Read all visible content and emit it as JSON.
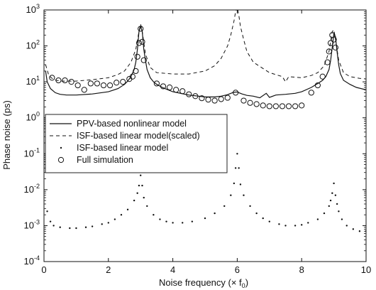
{
  "chart_data": {
    "type": "line",
    "xlabel": "Noise frequency (× f",
    "xlabel_subscript": "0",
    "xlabel_suffix": ")",
    "ylabel": "Phase noise (ps)",
    "xlim": [
      0,
      10
    ],
    "ylim": [
      0.0001,
      1000
    ],
    "yscale": "log",
    "x_ticks": [
      0,
      2,
      4,
      6,
      8,
      10
    ],
    "y_tick_exponents": [
      -4,
      -3,
      -2,
      -1,
      0,
      1,
      2,
      3
    ],
    "y_tick_base": "10",
    "grid": false,
    "legend_position": "middle-left",
    "series": [
      {
        "name": "PPV-based nonlinear model",
        "style": "solid",
        "x": [
          0.05,
          0.1,
          0.2,
          0.35,
          0.5,
          0.7,
          1.0,
          1.5,
          2.0,
          2.3,
          2.5,
          2.6,
          2.7,
          2.8,
          2.85,
          2.9,
          2.95,
          3.0,
          3.05,
          3.1,
          3.15,
          3.2,
          3.3,
          3.4,
          3.5,
          3.7,
          4.0,
          4.5,
          5.0,
          5.3,
          5.5,
          5.7,
          5.85,
          5.95,
          6.0,
          6.05,
          6.15,
          6.3,
          6.5,
          6.7,
          6.9,
          7.0,
          7.2,
          7.5,
          7.8,
          8.0,
          8.3,
          8.5,
          8.65,
          8.75,
          8.85,
          8.9,
          8.95,
          9.0,
          9.05,
          9.1,
          9.15,
          9.2,
          9.3,
          9.5,
          9.7,
          10.0
        ],
        "y": [
          20,
          10,
          6.5,
          5,
          4.5,
          4.3,
          4.3,
          4.6,
          5.3,
          6.5,
          8.5,
          10.5,
          14,
          22,
          35,
          80,
          250,
          350,
          250,
          80,
          40,
          22,
          13,
          10,
          8.5,
          6.8,
          5.3,
          4.3,
          3.8,
          3.8,
          4.0,
          4.4,
          5.0,
          5.2,
          5.2,
          5.0,
          4.6,
          4.2,
          4.0,
          3.6,
          4.8,
          3.7,
          4.3,
          4.5,
          4.8,
          5.3,
          7.0,
          9.0,
          11,
          14,
          22,
          40,
          90,
          220,
          180,
          70,
          30,
          17,
          11,
          8.5,
          7,
          6
        ]
      },
      {
        "name": "ISF-based linear model(scaled)",
        "style": "dashed",
        "x": [
          0.05,
          0.15,
          0.3,
          0.5,
          1.0,
          1.5,
          2.0,
          2.3,
          2.5,
          2.7,
          2.85,
          2.95,
          3.0,
          3.05,
          3.15,
          3.3,
          3.5,
          4.0,
          4.5,
          5.0,
          5.3,
          5.5,
          5.7,
          5.8,
          5.9,
          5.95,
          6.0,
          6.05,
          6.1,
          6.2,
          6.3,
          6.5,
          7.0,
          7.4,
          7.5,
          7.6,
          8.0,
          8.3,
          8.5,
          8.7,
          8.85,
          8.95,
          9.0,
          9.05,
          9.15,
          9.3,
          9.5,
          9.8,
          10.0
        ],
        "y": [
          30,
          15,
          11.5,
          10.5,
          10.5,
          11.5,
          13,
          16,
          20,
          35,
          80,
          250,
          400,
          250,
          60,
          25,
          18,
          16.5,
          16.5,
          20,
          28,
          45,
          100,
          200,
          500,
          900,
          1200,
          700,
          350,
          150,
          70,
          35,
          18,
          14,
          10,
          14,
          13,
          15,
          18,
          28,
          70,
          250,
          280,
          150,
          40,
          18,
          14,
          12.5,
          12
        ]
      },
      {
        "name": "ISF-based linear model",
        "style": "dotted",
        "x": [
          0.1,
          0.2,
          0.3,
          0.5,
          0.8,
          1.0,
          1.3,
          1.5,
          1.8,
          2.0,
          2.2,
          2.4,
          2.6,
          2.8,
          2.9,
          2.95,
          3.0,
          3.05,
          3.1,
          3.2,
          3.4,
          3.6,
          3.8,
          4.0,
          4.3,
          4.6,
          5.0,
          5.3,
          5.6,
          5.8,
          5.9,
          5.95,
          6.0,
          6.05,
          6.1,
          6.2,
          6.4,
          6.6,
          6.8,
          7.0,
          7.3,
          7.5,
          7.8,
          8.0,
          8.2,
          8.5,
          8.7,
          8.85,
          8.9,
          8.95,
          9.0,
          9.05,
          9.1,
          9.15,
          9.25,
          9.4,
          9.6,
          9.8,
          10.0
        ],
        "y": [
          0.0025,
          0.0013,
          0.001,
          0.0009,
          0.00085,
          0.00085,
          0.0009,
          0.00095,
          0.0011,
          0.0012,
          0.0015,
          0.002,
          0.0028,
          0.005,
          0.008,
          0.013,
          0.025,
          0.013,
          0.006,
          0.0035,
          0.002,
          0.0015,
          0.0013,
          0.0012,
          0.0012,
          0.0013,
          0.0016,
          0.0022,
          0.0035,
          0.007,
          0.015,
          0.04,
          0.1,
          0.04,
          0.014,
          0.007,
          0.0035,
          0.0022,
          0.0016,
          0.0013,
          0.0011,
          0.001,
          0.001,
          0.00105,
          0.0012,
          0.0015,
          0.0022,
          0.0035,
          0.005,
          0.008,
          0.015,
          0.007,
          0.004,
          0.0025,
          0.0015,
          0.001,
          0.0008,
          0.0007,
          0.0007
        ]
      },
      {
        "name": "Full simulation",
        "style": "circle",
        "x": [
          0.25,
          0.45,
          0.65,
          0.85,
          1.05,
          1.25,
          1.45,
          1.65,
          1.85,
          2.05,
          2.25,
          2.45,
          2.65,
          2.75,
          2.85,
          2.9,
          2.95,
          3.0,
          3.05,
          3.1,
          3.5,
          3.7,
          3.9,
          4.1,
          4.3,
          4.5,
          4.7,
          4.9,
          5.1,
          5.3,
          5.5,
          5.7,
          5.95,
          6.2,
          6.4,
          6.6,
          6.8,
          7.0,
          7.2,
          7.4,
          7.6,
          7.8,
          8.0,
          8.3,
          8.5,
          8.65,
          8.8,
          8.85,
          8.9,
          8.95,
          9.0,
          9.05
        ],
        "y": [
          13,
          11,
          11,
          10,
          8,
          6,
          9,
          9,
          8,
          8,
          9.5,
          10,
          12,
          14,
          20,
          50,
          120,
          300,
          130,
          40,
          9,
          7.5,
          7,
          6,
          5.5,
          4.5,
          4,
          3.5,
          3.2,
          3.0,
          3.3,
          3.6,
          5,
          3.0,
          2.6,
          2.4,
          2.2,
          2.1,
          2.1,
          2.1,
          2.1,
          2.1,
          2.2,
          5,
          8,
          14,
          35,
          70,
          120,
          200,
          150,
          90
        ]
      }
    ]
  }
}
